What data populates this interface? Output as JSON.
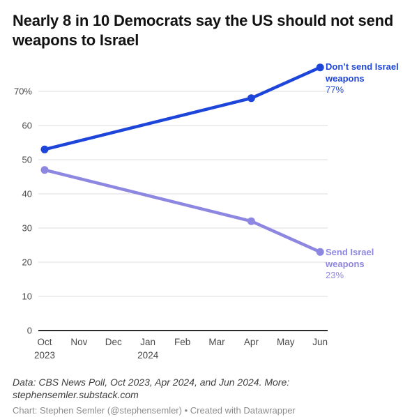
{
  "chart_data": {
    "type": "line",
    "title": "Nearly 8 in 10 Democrats say the US should not send weapons to Israel",
    "x_ticks": [
      {
        "label": "Oct",
        "year": "2023"
      },
      {
        "label": "Nov"
      },
      {
        "label": "Dec"
      },
      {
        "label": "Jan",
        "year": "2024"
      },
      {
        "label": "Feb"
      },
      {
        "label": "Mar"
      },
      {
        "label": "Apr"
      },
      {
        "label": "May"
      },
      {
        "label": "Jun"
      }
    ],
    "y_ticks": [
      {
        "value": 0,
        "label": "0"
      },
      {
        "value": 10,
        "label": "10"
      },
      {
        "value": 20,
        "label": "20"
      },
      {
        "value": 30,
        "label": "30"
      },
      {
        "value": 40,
        "label": "40"
      },
      {
        "value": 50,
        "label": "50"
      },
      {
        "value": 60,
        "label": "60"
      },
      {
        "value": 70,
        "label": "70%"
      }
    ],
    "ylim": [
      0,
      78
    ],
    "grid": true,
    "legend_position": "right-of-line-ends",
    "series": [
      {
        "name": "Don’t send Israel weapons",
        "color": "#1d45d9",
        "value_label": "77%",
        "points": [
          {
            "x": 0,
            "x_label": "Oct 2023",
            "value": 53
          },
          {
            "x": 6,
            "x_label": "Apr 2024",
            "value": 68
          },
          {
            "x": 8,
            "x_label": "Jun 2024",
            "value": 77
          }
        ]
      },
      {
        "name": "Send Israel weapons",
        "color": "#8e87e1",
        "value_label": "23%",
        "points": [
          {
            "x": 0,
            "x_label": "Oct 2023",
            "value": 47
          },
          {
            "x": 6,
            "x_label": "Apr 2024",
            "value": 32
          },
          {
            "x": 8,
            "x_label": "Jun 2024",
            "value": 23
          }
        ]
      }
    ]
  },
  "colors": {
    "gridline": "#dcdcdc",
    "axis_line": "#2b2b2b",
    "tick_label": "#494949"
  },
  "footer": {
    "source_line": "Data: CBS News Poll, Oct 2023, Apr 2024, and Jun 2024. More: stephensemler.substack.com",
    "credit_line": "Chart: Stephen Semler (@stephensemler) • Created with Datawrapper"
  }
}
